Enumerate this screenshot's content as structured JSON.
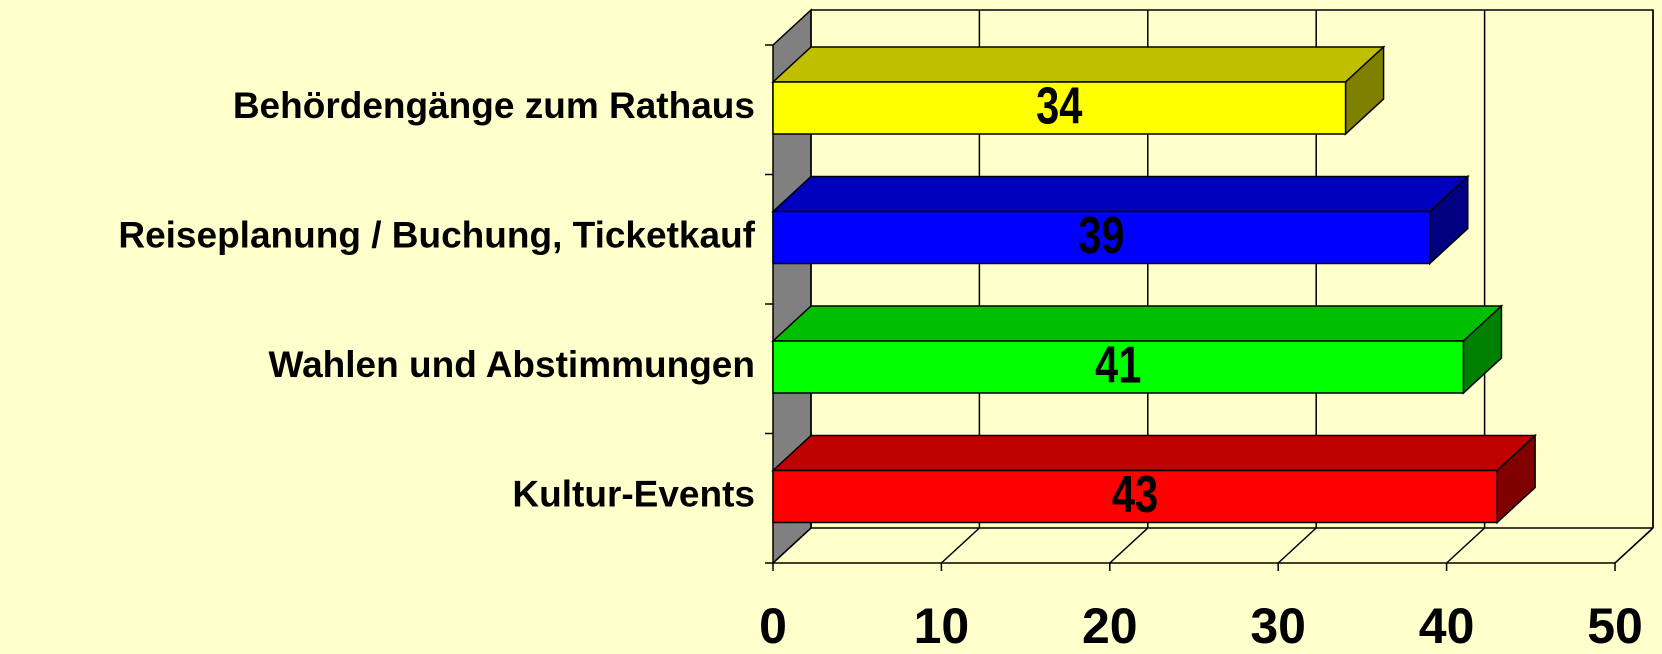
{
  "chart_data": {
    "type": "bar3d-horizontal",
    "categories": [
      "Behördengänge zum Rathaus",
      "Reiseplanung / Buchung, Ticketkauf",
      "Wahlen und Abstimmungen",
      "Kultur-Events"
    ],
    "values": [
      34,
      39,
      41,
      43
    ],
    "colors": [
      "#ffff00",
      "#0000ff",
      "#00ff00",
      "#ff0000"
    ],
    "xlim": [
      0,
      50
    ],
    "xticks": [
      0,
      10,
      20,
      30,
      40,
      50
    ],
    "grid": true
  }
}
